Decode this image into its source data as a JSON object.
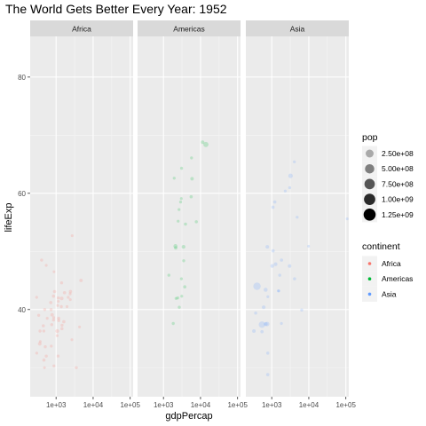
{
  "chart_data": {
    "type": "scatter",
    "title": "The World Gets Better Every Year: 1952",
    "xlabel": "gdpPercap",
    "ylabel": "lifeExp",
    "x_scale": "log10",
    "xlim": [
      200,
      120000
    ],
    "ylim": [
      25,
      87
    ],
    "x_ticks": [
      1000,
      10000,
      100000
    ],
    "x_tick_labels": [
      "1e+03",
      "1e+04",
      "1e+05"
    ],
    "y_ticks": [
      40,
      60,
      80
    ],
    "y_tick_labels": [
      "40",
      "60",
      "80"
    ],
    "grid": true,
    "facets": [
      "Africa",
      "Americas",
      "Asia"
    ],
    "legend_position": "right",
    "legend": {
      "size": {
        "title": "pop",
        "labels": [
          "2.50e+08",
          "5.00e+08",
          "7.50e+08",
          "1.00e+09",
          "1.25e+09"
        ],
        "values": [
          250000000,
          500000000,
          750000000,
          1000000000,
          1250000000
        ]
      },
      "color": {
        "title": "continent",
        "labels": [
          "Africa",
          "Americas",
          "Asia"
        ]
      }
    },
    "colors": {
      "Africa": "#F8766D",
      "Americas": "#00BA38",
      "Asia": "#619CFF"
    },
    "series": [
      {
        "facet": "Africa",
        "points": [
          [
            2449,
            43.1,
            9.3
          ],
          [
            3521,
            30.0,
            4.2
          ],
          [
            851,
            38.2,
            1.7
          ],
          [
            543,
            47.6,
            0.4
          ],
          [
            543,
            32.0,
            4.5
          ],
          [
            339,
            39.0,
            2.4
          ],
          [
            1173,
            38.5,
            5.0
          ],
          [
            1071,
            35.5,
            1.3
          ],
          [
            1179,
            38.1,
            2.7
          ],
          [
            1103,
            40.7,
            0.2
          ],
          [
            781,
            39.1,
            14.1
          ],
          [
            2126,
            42.1,
            0.9
          ],
          [
            1389,
            40.5,
            2.9
          ],
          [
            2670,
            34.8,
            0.1
          ],
          [
            1419,
            41.9,
            22.2
          ],
          [
            376,
            34.5,
            0.2
          ],
          [
            468,
            36.3,
            1.4
          ],
          [
            362,
            34.1,
            20.9
          ],
          [
            4293,
            37.0,
            0.4
          ],
          [
            485,
            30.0,
            0.3
          ],
          [
            911,
            43.1,
            5.6
          ],
          [
            510,
            33.6,
            2.7
          ],
          [
            300,
            32.5,
            0.6
          ],
          [
            854,
            42.3,
            6.5
          ],
          [
            299,
            42.1,
            0.7
          ],
          [
            575,
            38.5,
            0.9
          ],
          [
            2388,
            42.7,
            1.0
          ],
          [
            1443,
            36.7,
            4.8
          ],
          [
            369,
            36.3,
            2.9
          ],
          [
            452,
            37.2,
            3.8
          ],
          [
            743,
            33.7,
            1.0
          ],
          [
            1967,
            40.5,
            0.5
          ],
          [
            1688,
            42.9,
            9.9
          ],
          [
            469,
            31.3,
            6.4
          ],
          [
            2424,
            41.7,
            0.5
          ],
          [
            762,
            37.4,
            3.4
          ],
          [
            1077,
            36.3,
            33.1
          ],
          [
            2719,
            52.7,
            0.3
          ],
          [
            493,
            40.0,
            2.5
          ],
          [
            880,
            46.5,
            0.06
          ],
          [
            1450,
            37.3,
            2.8
          ],
          [
            879,
            30.3,
            2.1
          ],
          [
            1135,
            32.0,
            2.3
          ],
          [
            4725,
            45.0,
            14.3
          ],
          [
            1615,
            37.9,
            8.5
          ],
          [
            1148,
            41.4,
            0.3
          ],
          [
            717,
            41.2,
            8.3
          ],
          [
            860,
            38.6,
            1.2
          ],
          [
            1407,
            44.6,
            3.6
          ],
          [
            735,
            39.98,
            5.8
          ],
          [
            1147,
            42.0,
            3.1
          ],
          [
            407,
            48.5,
            2.9
          ]
        ]
      },
      {
        "facet": "Americas",
        "points": [
          [
            5911,
            62.5,
            17.9
          ],
          [
            2677,
            40.4,
            2.9
          ],
          [
            2109,
            50.9,
            56.6
          ],
          [
            11367,
            68.8,
            14.8
          ],
          [
            3940,
            54.7,
            6.4
          ],
          [
            2144,
            50.6,
            12.4
          ],
          [
            2627,
            57.2,
            0.9
          ],
          [
            5587,
            59.4,
            6.0
          ],
          [
            1398,
            45.9,
            2.5
          ],
          [
            3522,
            48.4,
            3.5
          ],
          [
            3048,
            45.3,
            2.0
          ],
          [
            2428,
            42.0,
            3.1
          ],
          [
            1840,
            37.6,
            3.2
          ],
          [
            2194,
            41.9,
            1.5
          ],
          [
            2899,
            58.5,
            1.4
          ],
          [
            3478,
            50.8,
            30.1
          ],
          [
            3112,
            42.3,
            1.2
          ],
          [
            2480,
            55.2,
            0.9
          ],
          [
            1952,
            62.6,
            1.6
          ],
          [
            3759,
            43.9,
            8.0
          ],
          [
            3082,
            64.3,
            2.2
          ],
          [
            3024,
            59.1,
            0.7
          ],
          [
            13990,
            68.4,
            157.6
          ],
          [
            5717,
            66.1,
            2.3
          ],
          [
            7690,
            55.1,
            5.4
          ]
        ]
      },
      {
        "facet": "Asia",
        "points": [
          [
            779,
            28.8,
            8.4
          ],
          [
            9867,
            50.9,
            0.1
          ],
          [
            684,
            37.5,
            46.9
          ],
          [
            368,
            39.4,
            4.7
          ],
          [
            400,
            44.0,
            556.3
          ],
          [
            3054,
            60.96,
            2.1
          ],
          [
            547,
            37.4,
            372.0
          ],
          [
            750,
            37.5,
            82.1
          ],
          [
            3035,
            47.5,
            17.3
          ],
          [
            4129,
            45.3,
            5.4
          ],
          [
            4087,
            65.4,
            1.6
          ],
          [
            3217,
            63.0,
            86.5
          ],
          [
            1547,
            43.2,
            0.6
          ],
          [
            1088,
            50.1,
            8.9
          ],
          [
            1031,
            47.5,
            20.9
          ],
          [
            108382,
            55.6,
            0.2
          ],
          [
            4835,
            55.9,
            1.4
          ],
          [
            1831,
            48.5,
            6.7
          ],
          [
            786,
            42.2,
            0.8
          ],
          [
            331,
            36.3,
            20.1
          ],
          [
            546,
            36.2,
            9.2
          ],
          [
            1829,
            37.6,
            0.5
          ],
          [
            684,
            43.4,
            41.3
          ],
          [
            1272,
            47.8,
            22.4
          ],
          [
            6460,
            39.9,
            4.0
          ],
          [
            2315,
            60.4,
            1.1
          ],
          [
            1083,
            57.6,
            7.9
          ],
          [
            1644,
            45.9,
            3.7
          ],
          [
            1207,
            58.5,
            8.6
          ],
          [
            758,
            50.8,
            21.3
          ],
          [
            605,
            40.4,
            26.2
          ],
          [
            1516,
            43.2,
            1.3
          ],
          [
            781,
            32.5,
            4.96
          ]
        ]
      }
    ]
  }
}
